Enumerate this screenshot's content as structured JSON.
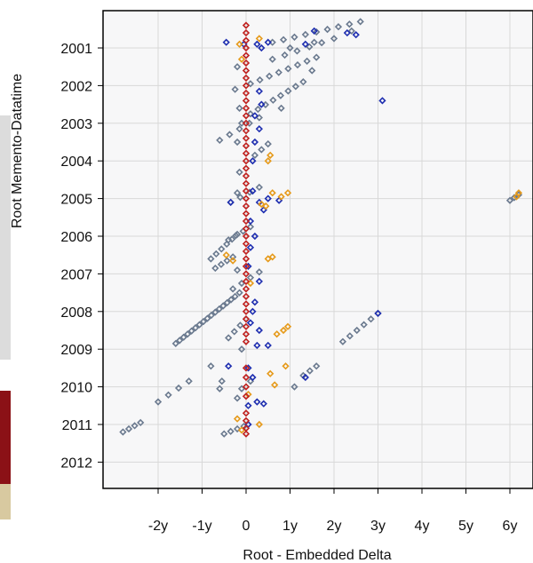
{
  "colors": {
    "panel_bg": "#f7f7f8",
    "grid": "#d8d8d8",
    "frame": "#000000",
    "series_gray": "#6b7a8f",
    "series_blue": "#1f2fb0",
    "series_orange": "#e69a1a",
    "series_red": "#c0211f",
    "strip_gray": "#dcdcdc",
    "strip_dark_red": "#8b1116",
    "strip_tan": "#d8c9a0"
  },
  "chart_data": {
    "type": "scatter",
    "title": "",
    "xlabel": "Root - Embedded Delta",
    "ylabel": "Root Memento-Datatime",
    "x_ticks": [
      "-2y",
      "-1y",
      "0",
      "1y",
      "2y",
      "3y",
      "4y",
      "5y",
      "6y"
    ],
    "y_ticks": [
      "2001",
      "2002",
      "2003",
      "2004",
      "2005",
      "2006",
      "2007",
      "2008",
      "2009",
      "2010",
      "2011",
      "2012"
    ],
    "xlim": [
      -3.2,
      6.6
    ],
    "ylim": [
      2000.1,
      2012.8
    ],
    "y_reversed": true,
    "grid": true,
    "marker": "open-diamond",
    "series": [
      {
        "color": "gray",
        "segments": [
          {
            "from": [
              0.6,
              2000.85
            ],
            "to": [
              2.6,
              2000.3
            ],
            "n": 9
          },
          {
            "from": [
              0.6,
              2001.3
            ],
            "to": [
              2.0,
              2000.75
            ],
            "n": 6
          },
          {
            "from": [
              0.1,
              2001.95
            ],
            "to": [
              1.6,
              2001.25
            ],
            "n": 8
          },
          {
            "from": [
              0.1,
              2002.75
            ],
            "to": [
              1.3,
              2001.9
            ],
            "n": 8
          },
          {
            "from": [
              -0.6,
              2003.45
            ],
            "to": [
              0.3,
              2002.85
            ],
            "n": 5
          },
          {
            "from": [
              0.2,
              2003.85
            ],
            "to": [
              0.5,
              2003.55
            ],
            "n": 3
          },
          {
            "from": [
              -0.35,
              2005.1
            ],
            "to": [
              0.3,
              2004.7
            ],
            "n": 4
          },
          {
            "from": [
              -0.4,
              2006.1
            ],
            "to": [
              0.1,
              2005.75
            ],
            "n": 4
          },
          {
            "from": [
              -0.8,
              2006.6
            ],
            "to": [
              -0.2,
              2005.95
            ],
            "n": 6
          },
          {
            "from": [
              -0.7,
              2006.85
            ],
            "to": [
              -0.3,
              2006.55
            ],
            "n": 4
          },
          {
            "from": [
              -0.3,
              2007.4
            ],
            "to": [
              0.3,
              2006.95
            ],
            "n": 4
          },
          {
            "from": [
              -1.6,
              2008.85
            ],
            "to": [
              -0.25,
              2007.6
            ],
            "n": 16
          },
          {
            "from": [
              -0.4,
              2008.7
            ],
            "to": [
              0.0,
              2008.2
            ],
            "n": 4
          },
          {
            "from": [
              2.2,
              2008.8
            ],
            "to": [
              3.0,
              2008.05
            ],
            "n": 6
          },
          {
            "from": [
              -2.8,
              2011.2
            ],
            "to": [
              -2.4,
              2010.95
            ],
            "n": 4
          },
          {
            "from": [
              -2.0,
              2010.4
            ],
            "to": [
              -1.3,
              2009.85
            ],
            "n": 4
          },
          {
            "from": [
              -0.1,
              2010.05
            ],
            "to": [
              0.1,
              2009.85
            ],
            "n": 2
          },
          {
            "from": [
              -0.5,
              2011.25
            ],
            "to": [
              -0.05,
              2011.05
            ],
            "n": 4
          },
          {
            "from": [
              1.3,
              2009.7
            ],
            "to": [
              1.6,
              2009.45
            ],
            "n": 3
          },
          {
            "from": [
              6.0,
              2005.05
            ],
            "to": [
              6.2,
              2004.9
            ],
            "n": 3
          }
        ],
        "points": [
          [
            -0.2,
            2001.5
          ],
          [
            -0.25,
            2002.1
          ],
          [
            -0.15,
            2002.6
          ],
          [
            -0.1,
            2003.0
          ],
          [
            -0.2,
            2003.5
          ],
          [
            -0.15,
            2004.3
          ],
          [
            -0.2,
            2004.85
          ],
          [
            -0.2,
            2006.9
          ],
          [
            -0.15,
            2007.5
          ],
          [
            -0.1,
            2009.0
          ],
          [
            -0.6,
            2010.05
          ],
          [
            -0.55,
            2009.85
          ],
          [
            -0.8,
            2009.45
          ],
          [
            -0.2,
            2010.3
          ],
          [
            1.1,
            2010.0
          ],
          [
            1.0,
            2001.0
          ],
          [
            1.55,
            2000.85
          ],
          [
            2.4,
            2000.55
          ],
          [
            0.8,
            2002.6
          ],
          [
            1.5,
            2001.6
          ]
        ]
      },
      {
        "color": "blue",
        "points": [
          [
            -0.45,
            2000.85
          ],
          [
            -0.05,
            2000.9
          ],
          [
            0.25,
            2000.9
          ],
          [
            0.5,
            2000.85
          ],
          [
            1.35,
            2000.9
          ],
          [
            1.55,
            2000.55
          ],
          [
            2.3,
            2000.6
          ],
          [
            2.5,
            2000.65
          ],
          [
            0.35,
            2001.0
          ],
          [
            0.3,
            2002.15
          ],
          [
            0.35,
            2002.5
          ],
          [
            0.2,
            2002.8
          ],
          [
            0.3,
            2003.15
          ],
          [
            0.2,
            2003.5
          ],
          [
            0.15,
            2004.0
          ],
          [
            0.15,
            2004.8
          ],
          [
            0.3,
            2005.1
          ],
          [
            0.5,
            2005.0
          ],
          [
            0.4,
            2005.3
          ],
          [
            0.1,
            2005.6
          ],
          [
            0.2,
            2006.0
          ],
          [
            0.1,
            2006.3
          ],
          [
            0.05,
            2006.8
          ],
          [
            0.3,
            2007.2
          ],
          [
            0.2,
            2007.75
          ],
          [
            0.15,
            2008.0
          ],
          [
            0.1,
            2008.3
          ],
          [
            0.3,
            2008.5
          ],
          [
            0.25,
            2008.9
          ],
          [
            0.5,
            2008.9
          ],
          [
            -0.4,
            2009.45
          ],
          [
            0.05,
            2009.5
          ],
          [
            0.15,
            2009.75
          ],
          [
            0.25,
            2010.4
          ],
          [
            0.4,
            2010.45
          ],
          [
            0.05,
            2010.5
          ],
          [
            0.05,
            2011.0
          ],
          [
            3.1,
            2002.4
          ],
          [
            3.0,
            2008.05
          ],
          [
            0.75,
            2005.05
          ],
          [
            -0.35,
            2005.1
          ],
          [
            1.35,
            2009.75
          ]
        ]
      },
      {
        "color": "orange",
        "points": [
          [
            -0.15,
            2000.9
          ],
          [
            0.3,
            2000.75
          ],
          [
            -0.1,
            2001.3
          ],
          [
            0.55,
            2003.85
          ],
          [
            0.5,
            2004.0
          ],
          [
            0.6,
            2004.85
          ],
          [
            0.8,
            2004.95
          ],
          [
            0.95,
            2004.85
          ],
          [
            0.35,
            2005.15
          ],
          [
            0.45,
            2005.2
          ],
          [
            -0.45,
            2006.5
          ],
          [
            -0.3,
            2006.65
          ],
          [
            0.6,
            2006.55
          ],
          [
            0.5,
            2006.6
          ],
          [
            0.1,
            2007.25
          ],
          [
            0.95,
            2008.4
          ],
          [
            0.85,
            2008.5
          ],
          [
            0.7,
            2008.6
          ],
          [
            0.9,
            2009.45
          ],
          [
            0.55,
            2009.65
          ],
          [
            0.65,
            2009.95
          ],
          [
            -0.2,
            2010.85
          ],
          [
            0.3,
            2011.0
          ],
          [
            -0.1,
            2011.15
          ],
          [
            6.15,
            2004.95
          ],
          [
            6.2,
            2004.85
          ],
          [
            0.05,
            2010.2
          ]
        ]
      },
      {
        "color": "red",
        "points": [
          [
            0.0,
            2000.4
          ],
          [
            0.0,
            2000.6
          ],
          [
            0.0,
            2000.8
          ],
          [
            0.0,
            2001.0
          ],
          [
            0.0,
            2001.2
          ],
          [
            0.0,
            2001.4
          ],
          [
            0.0,
            2001.6
          ],
          [
            0.0,
            2001.8
          ],
          [
            0.0,
            2002.0
          ],
          [
            0.0,
            2002.2
          ],
          [
            0.0,
            2002.4
          ],
          [
            0.0,
            2002.6
          ],
          [
            0.0,
            2002.8
          ],
          [
            0.0,
            2003.0
          ],
          [
            0.0,
            2003.2
          ],
          [
            0.0,
            2003.4
          ],
          [
            0.0,
            2003.6
          ],
          [
            0.0,
            2003.8
          ],
          [
            0.0,
            2004.0
          ],
          [
            0.0,
            2004.2
          ],
          [
            0.0,
            2004.4
          ],
          [
            0.0,
            2004.6
          ],
          [
            0.0,
            2004.8
          ],
          [
            0.0,
            2005.0
          ],
          [
            0.0,
            2005.2
          ],
          [
            0.0,
            2005.4
          ],
          [
            0.0,
            2005.6
          ],
          [
            0.0,
            2005.8
          ],
          [
            0.0,
            2006.0
          ],
          [
            0.0,
            2006.2
          ],
          [
            0.0,
            2006.4
          ],
          [
            0.0,
            2006.6
          ],
          [
            0.0,
            2006.8
          ],
          [
            0.0,
            2007.0
          ],
          [
            0.0,
            2007.2
          ],
          [
            0.0,
            2007.4
          ],
          [
            0.0,
            2007.6
          ],
          [
            0.0,
            2007.8
          ],
          [
            0.0,
            2008.0
          ],
          [
            0.0,
            2008.2
          ],
          [
            0.0,
            2008.4
          ],
          [
            0.0,
            2008.6
          ],
          [
            0.0,
            2008.8
          ],
          [
            0.0,
            2009.5
          ],
          [
            0.0,
            2009.75
          ],
          [
            0.0,
            2010.0
          ],
          [
            0.0,
            2010.25
          ],
          [
            0.0,
            2010.7
          ],
          [
            0.0,
            2010.9
          ],
          [
            0.0,
            2011.1
          ],
          [
            0.0,
            2011.25
          ]
        ]
      }
    ]
  }
}
